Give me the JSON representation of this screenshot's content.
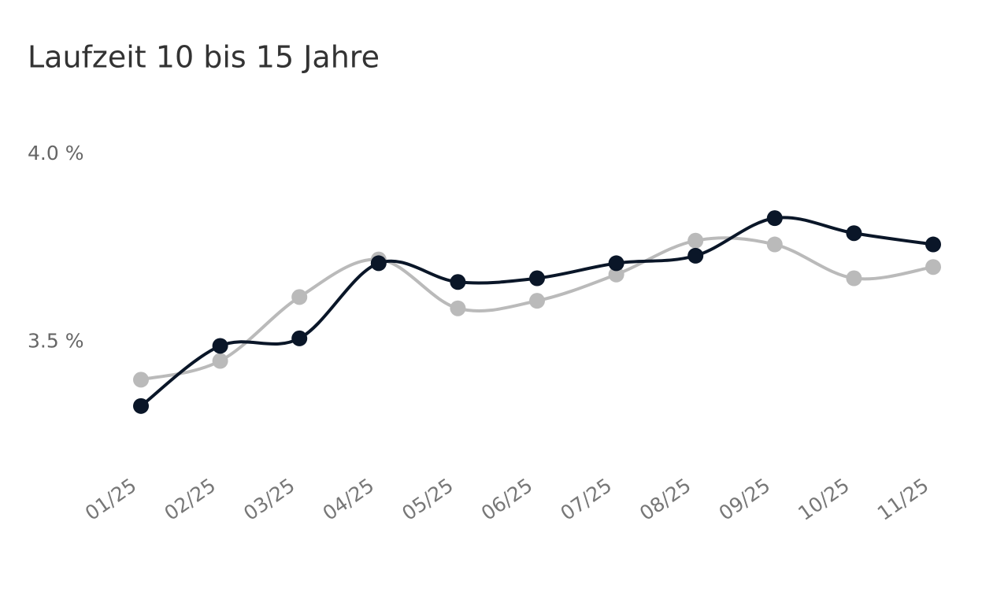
{
  "chart_data": {
    "type": "line",
    "title": "Laufzeit 10 bis 15 Jahre",
    "categories": [
      "01/25",
      "02/25",
      "03/25",
      "04/25",
      "05/25",
      "06/25",
      "07/25",
      "08/25",
      "09/25",
      "10/25",
      "11/25"
    ],
    "series": [
      {
        "color": "#0a1628",
        "values": [
          3.33,
          3.49,
          3.51,
          3.71,
          3.66,
          3.67,
          3.71,
          3.73,
          3.83,
          3.79,
          3.76
        ]
      },
      {
        "color": "#bababa",
        "values": [
          3.4,
          3.45,
          3.62,
          3.72,
          3.59,
          3.61,
          3.68,
          3.77,
          3.76,
          3.67,
          3.7
        ]
      }
    ],
    "ylim": [
      3.25,
      4.0
    ],
    "yticks": [
      {
        "value": 3.5,
        "label": "3.5 %"
      },
      {
        "value": 4.0,
        "label": "4.0 %"
      }
    ],
    "grid": false
  }
}
